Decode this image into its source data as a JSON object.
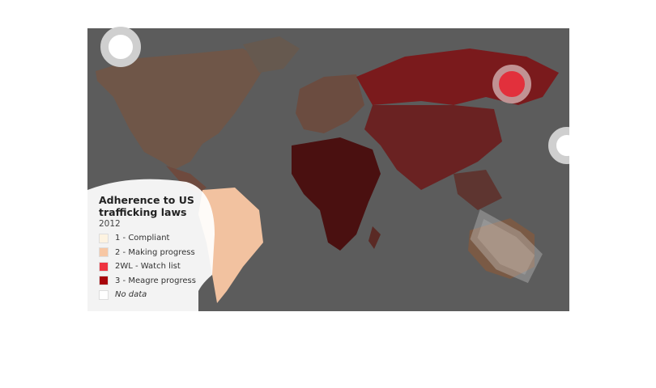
{
  "legend": {
    "title": "Adherence to US trafficking laws",
    "year": "2012",
    "items": [
      {
        "label": "1 - Compliant",
        "color": "#fdf3e1"
      },
      {
        "label": "2 - Making progress",
        "color": "#f7c7a4"
      },
      {
        "label": "2WL - Watch list",
        "color": "#ee3340"
      },
      {
        "label": "3 - Meagre progress",
        "color": "#a8060c"
      },
      {
        "label": "No data",
        "color": "#ffffff",
        "italic": true
      }
    ]
  }
}
